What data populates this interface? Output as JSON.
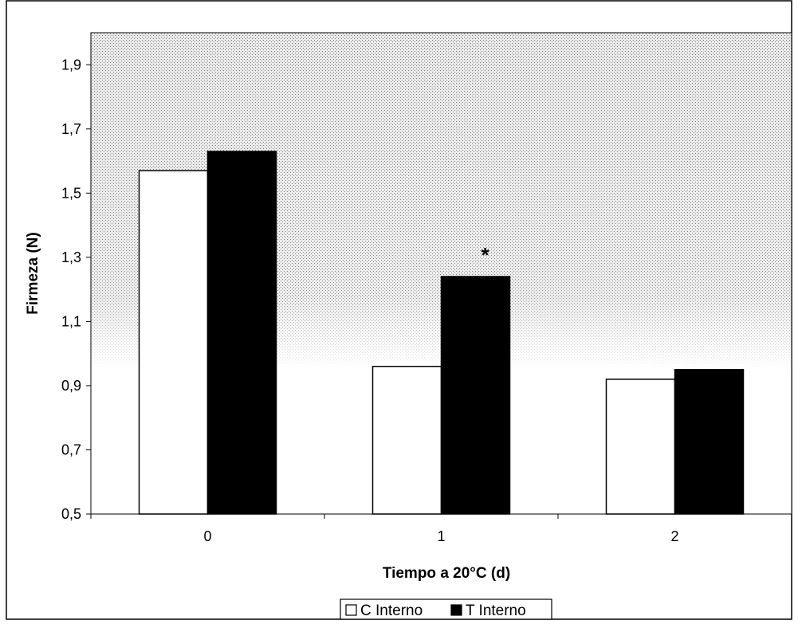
{
  "chart_data": {
    "type": "bar",
    "title": "",
    "xlabel": "Tiempo a 20°C (d)",
    "ylabel": "Firmeza (N)",
    "categories": [
      "0",
      "1",
      "2"
    ],
    "series": [
      {
        "name": "C Interno",
        "values": [
          1.57,
          0.96,
          0.92
        ],
        "color": "#ffffff"
      },
      {
        "name": "T Interno",
        "values": [
          1.63,
          1.24,
          0.95
        ],
        "color": "#000000"
      }
    ],
    "ylim": [
      0.5,
      2.0
    ],
    "yticks": [
      "0,5",
      "0,7",
      "0,9",
      "1,1",
      "1,3",
      "1,5",
      "1,7",
      "1,9"
    ],
    "ytick_values": [
      0.5,
      0.7,
      0.9,
      1.1,
      1.3,
      1.5,
      1.7,
      1.9
    ],
    "annotations": [
      {
        "text": "*",
        "category": "1",
        "series": "T Interno"
      }
    ],
    "legend_position": "bottom",
    "grid": false,
    "background": "shaded stipple"
  }
}
